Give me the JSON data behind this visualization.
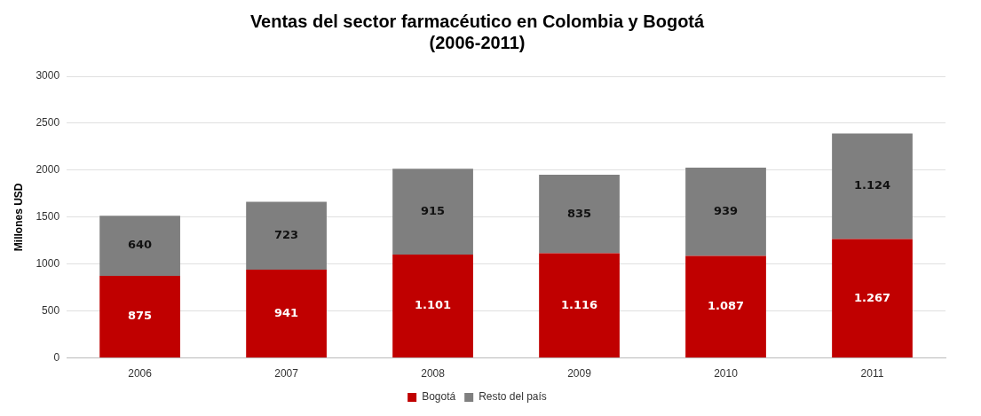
{
  "chart_data": {
    "type": "bar",
    "title": "Ventas del sector farmacéutico en Colombia y Bogotá",
    "subtitle": "(2006-2011)",
    "ylabel": "Millones USD",
    "categories": [
      "2006",
      "2007",
      "2008",
      "2009",
      "2010",
      "2011"
    ],
    "series": [
      {
        "name": "Bogotá",
        "color": "#c00000",
        "values": [
          875,
          941,
          1101,
          1116,
          1087,
          1267
        ],
        "value_labels": [
          "875",
          "941",
          "1.101",
          "1.116",
          "1.087",
          "1.267"
        ]
      },
      {
        "name": "Resto del país",
        "color": "#7f7f7f",
        "values": [
          640,
          723,
          915,
          835,
          939,
          1124
        ],
        "value_labels": [
          "640",
          "723",
          "915",
          "835",
          "939",
          "1.124"
        ]
      }
    ],
    "stacked": true,
    "ylim": [
      0,
      3000
    ],
    "yticks": [
      0,
      500,
      1000,
      1500,
      2000,
      2500,
      3000
    ],
    "grid": "y",
    "legend": "bottom"
  }
}
